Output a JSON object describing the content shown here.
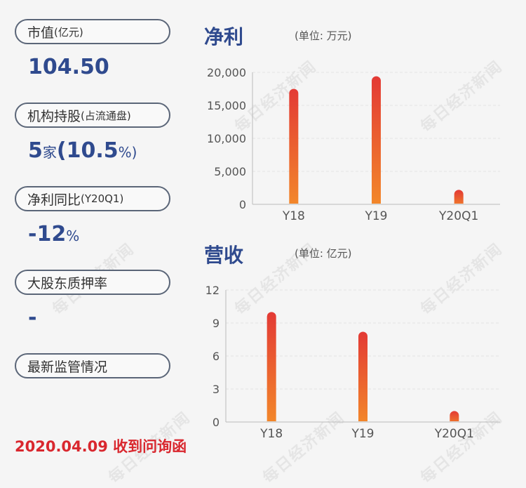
{
  "stats": [
    {
      "label": "市值",
      "sub": "(亿元)",
      "value": "104.50",
      "unit": ""
    },
    {
      "label": "机构持股",
      "sub": "(占流通盘)",
      "value_parts": [
        "5",
        "家",
        "(10.5",
        "%)"
      ]
    },
    {
      "label": "净利同比",
      "sub": "(Y20Q1)",
      "value": "-12",
      "unit": "%"
    },
    {
      "label": "大股东质押率",
      "sub": "",
      "value": "-",
      "unit": ""
    },
    {
      "label": "最新监管情况",
      "sub": ""
    }
  ],
  "footer": "2020.04.09 收到问询函",
  "watermark": "每日经济新闻",
  "colors": {
    "accent": "#2f4a8e",
    "bar_top": "#e33a35",
    "bar_bottom": "#f38a2a",
    "footer": "#d9272e"
  },
  "chart_data": [
    {
      "type": "bar",
      "title": "净利",
      "unit_label": "(单位: 万元)",
      "categories": [
        "Y18",
        "Y19",
        "Y20Q1"
      ],
      "values": [
        17500,
        19400,
        2200
      ],
      "ylim": [
        0,
        20000
      ],
      "ticks": [
        0,
        5000,
        10000,
        15000,
        20000
      ],
      "tick_labels": [
        "0",
        "5,000",
        "10,000",
        "15,000",
        "20,000"
      ],
      "grid": true
    },
    {
      "type": "bar",
      "title": "营收",
      "unit_label": "(单位: 亿元)",
      "categories": [
        "Y18",
        "Y19",
        "Y20Q1"
      ],
      "values": [
        10.0,
        8.2,
        1.0
      ],
      "ylim": [
        0,
        12
      ],
      "ticks": [
        0,
        3,
        6,
        9,
        12
      ],
      "tick_labels": [
        "0",
        "3",
        "6",
        "9",
        "12"
      ],
      "grid": true
    }
  ]
}
